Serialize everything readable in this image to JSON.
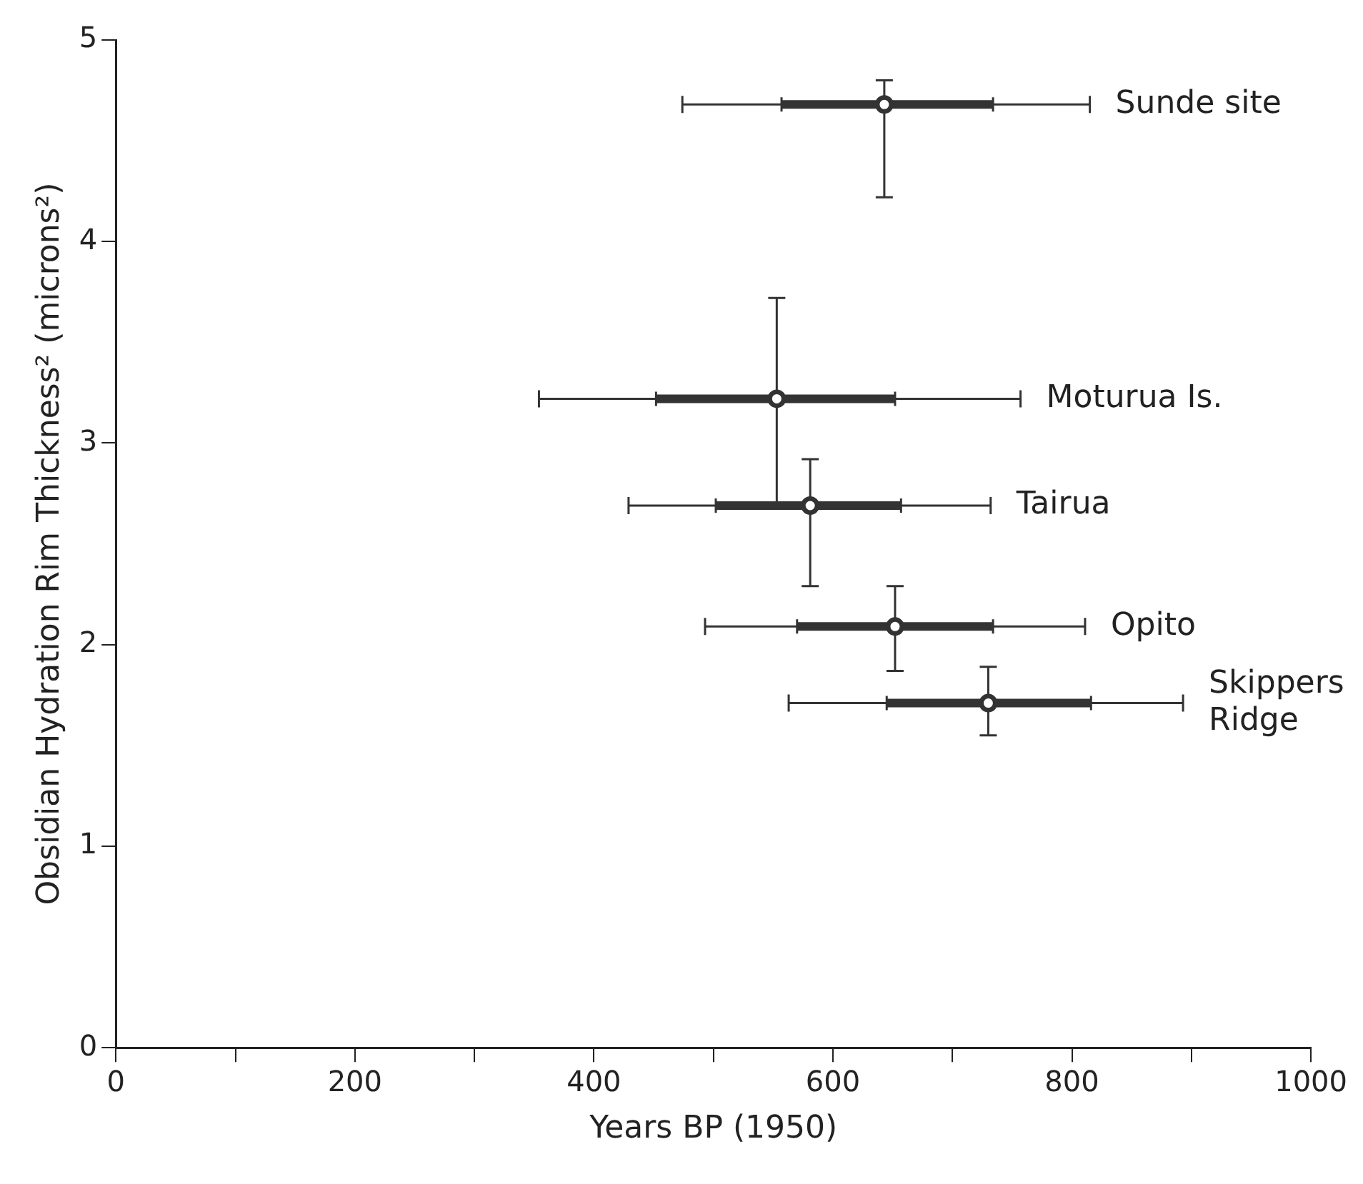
{
  "chart_data": {
    "type": "scatter",
    "xlabel": "Years BP (1950)",
    "ylabel": "Obsidian Hydration Rim Thickness² (microns²)",
    "xlim": [
      0,
      1000
    ],
    "ylim": [
      0,
      5
    ],
    "xticks": [
      0,
      {
        "value": 100,
        "label": null
      },
      200,
      {
        "value": 300,
        "label": null
      },
      400,
      {
        "value": 500,
        "label": null
      },
      600,
      {
        "value": 700,
        "label": null
      },
      800,
      {
        "value": 900,
        "label": null
      },
      1000
    ],
    "yticks": [
      0,
      1,
      2,
      3,
      4,
      5
    ],
    "grid": false,
    "legend": false,
    "series": [
      {
        "color": "#333333",
        "x": [
          643,
          553,
          581,
          652,
          730
        ],
        "values": [
          4.68,
          3.22,
          2.69,
          2.09,
          1.71
        ],
        "errors": [
          [
            4.22,
            4.8
          ],
          [
            2.7,
            3.72
          ],
          [
            2.29,
            2.92
          ],
          [
            1.87,
            2.29
          ],
          [
            1.55,
            1.89
          ]
        ],
        "xerrors": [
          [
            474,
            815
          ],
          [
            354,
            757
          ],
          [
            429,
            732
          ],
          [
            493,
            811
          ],
          [
            563,
            893
          ]
        ]
      },
      {
        "color": "#333333",
        "x": [
          643,
          553,
          581,
          652,
          730
        ],
        "values": [
          4.68,
          3.22,
          2.69,
          2.09,
          1.71
        ],
        "xerrors": [
          [
            557,
            734
          ],
          [
            452,
            652
          ],
          [
            502,
            657
          ],
          [
            570,
            734
          ],
          [
            645,
            816
          ]
        ]
      }
    ],
    "annotations": [
      {
        "text": "Sunde site",
        "x": 815,
        "y": 4.68
      },
      {
        "text": "Moturua Is.",
        "x": 757,
        "y": 3.22
      },
      {
        "text": "Tairua",
        "x": 732,
        "y": 2.69
      },
      {
        "text": "Opito",
        "x": 811,
        "y": 2.09
      },
      {
        "text": "Skippers Ridge",
        "x": 893,
        "y": 1.71
      }
    ]
  }
}
